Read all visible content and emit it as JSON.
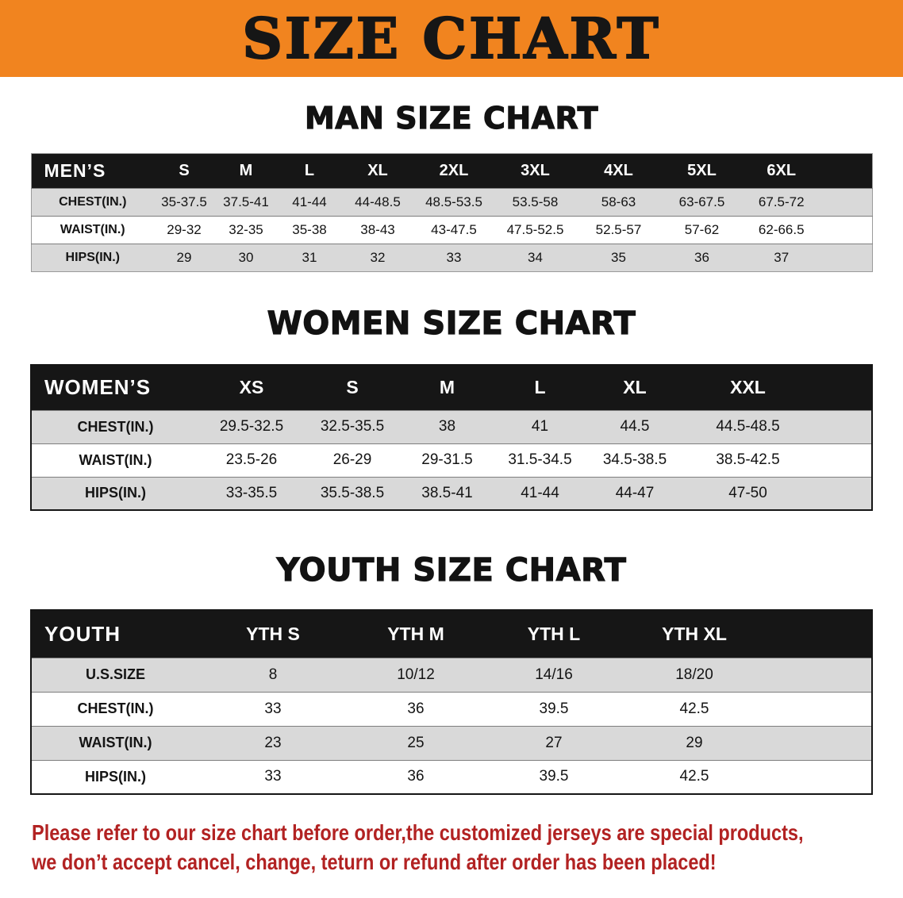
{
  "banner": {
    "title": "SIZE CHART",
    "bg_color": "#F1841F",
    "text_color": "#161616"
  },
  "sections": [
    {
      "title": "MAN SIZE CHART",
      "table": {
        "header": [
          "MEN’S",
          "S",
          "M",
          "L",
          "XL",
          "2XL",
          "3XL",
          "4XL",
          "5XL",
          "6XL"
        ],
        "rows": [
          [
            "CHEST(IN.)",
            "35-37.5",
            "37.5-41",
            "41-44",
            "44-48.5",
            "48.5-53.5",
            "53.5-58",
            "58-63",
            "63-67.5",
            "67.5-72"
          ],
          [
            "WAIST(IN.)",
            "29-32",
            "32-35",
            "35-38",
            "38-43",
            "43-47.5",
            "47.5-52.5",
            "52.5-57",
            "57-62",
            "62-66.5"
          ],
          [
            "HIPS(IN.)",
            "29",
            "30",
            "31",
            "32",
            "33",
            "34",
            "35",
            "36",
            "37"
          ]
        ]
      }
    },
    {
      "title": "WOMEN SIZE CHART",
      "table": {
        "header": [
          "WOMEN’S",
          "XS",
          "S",
          "M",
          "L",
          "XL",
          "XXL"
        ],
        "rows": [
          [
            "CHEST(IN.)",
            "29.5-32.5",
            "32.5-35.5",
            "38",
            "41",
            "44.5",
            "44.5-48.5"
          ],
          [
            "WAIST(IN.)",
            "23.5-26",
            "26-29",
            "29-31.5",
            "31.5-34.5",
            "34.5-38.5",
            "38.5-42.5"
          ],
          [
            "HIPS(IN.)",
            "33-35.5",
            "35.5-38.5",
            "38.5-41",
            "41-44",
            "44-47",
            "47-50"
          ]
        ]
      }
    },
    {
      "title": "YOUTH SIZE CHART",
      "table": {
        "header": [
          "YOUTH",
          "YTH S",
          "YTH M",
          "YTH L",
          "YTH XL"
        ],
        "rows": [
          [
            "U.S.SIZE",
            "8",
            "10/12",
            "14/16",
            "18/20"
          ],
          [
            "CHEST(IN.)",
            "33",
            "36",
            "39.5",
            "42.5"
          ],
          [
            "WAIST(IN.)",
            "23",
            "25",
            "27",
            "29"
          ],
          [
            "HIPS(IN.)",
            "33",
            "36",
            "39.5",
            "42.5"
          ]
        ]
      }
    }
  ],
  "footer": {
    "color": "#B22222",
    "lines": [
      "Please refer to our size chart before order,the customized jerseys are special products,",
      "we don’t accept cancel, change, teturn or refund after order has been placed!"
    ]
  },
  "colors": {
    "table_header_bg": "#161616",
    "stripe_row_bg": "#D9D9D9"
  }
}
